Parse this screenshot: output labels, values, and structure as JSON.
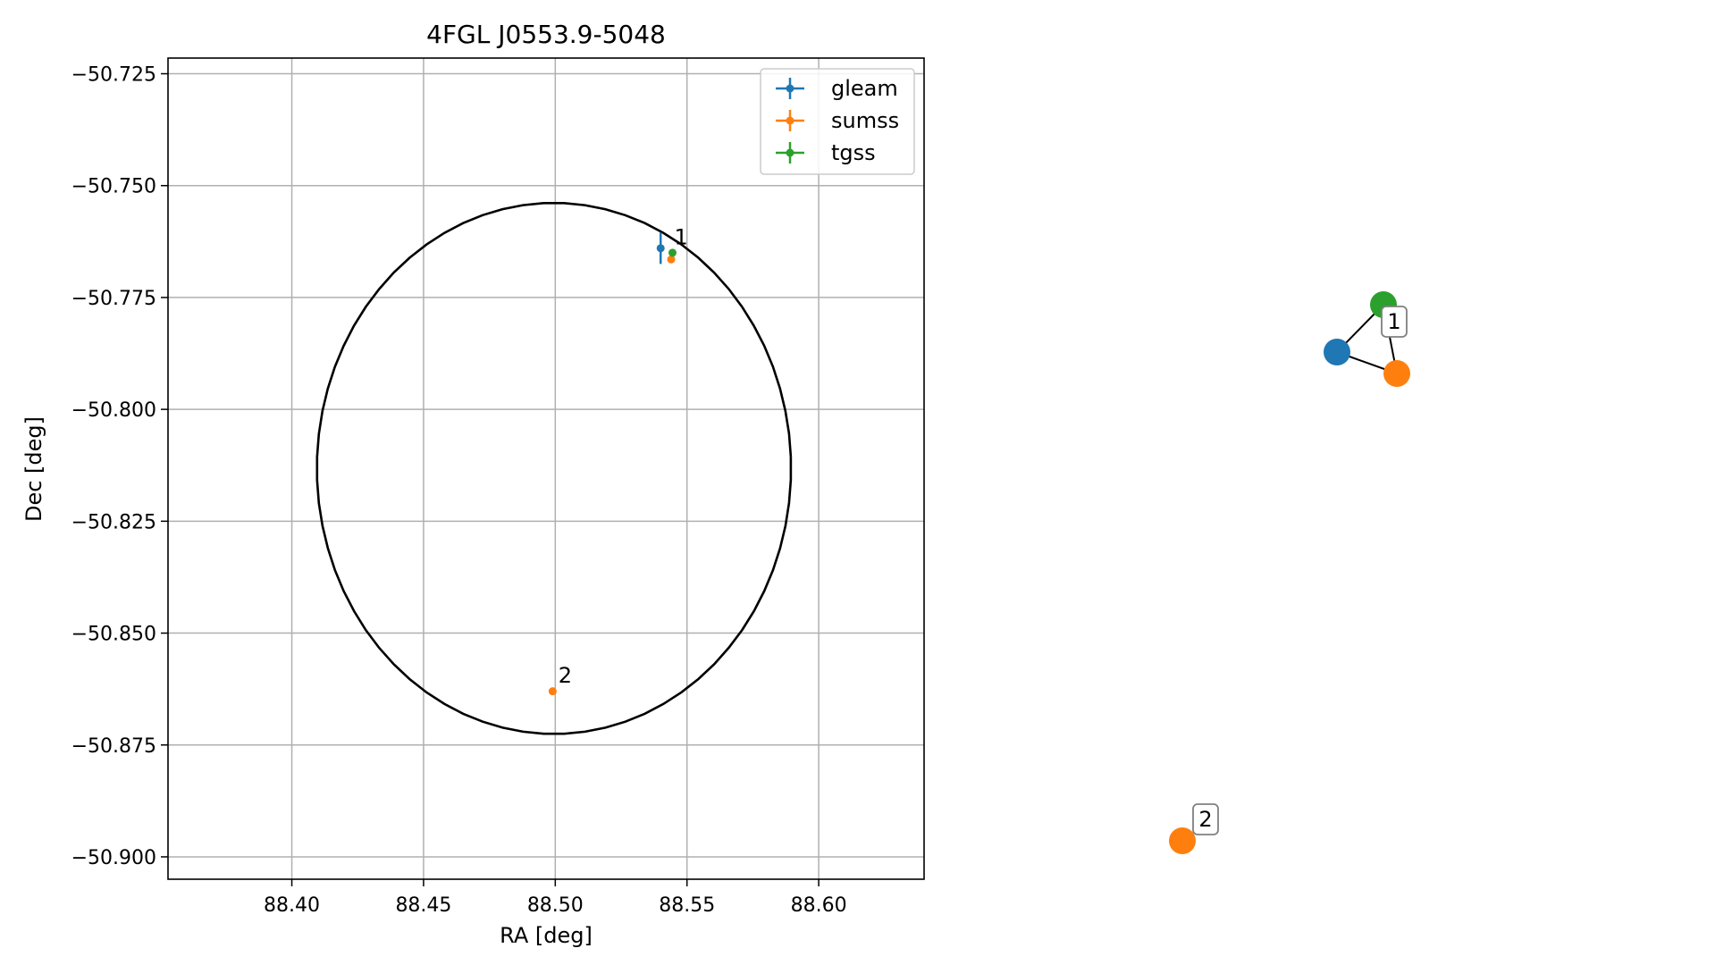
{
  "colors": {
    "gleam": "#1f77b4",
    "sumss": "#ff7f0e",
    "tgss": "#2ca02c",
    "grid": "#b0b0b0",
    "ellipse": "#000000"
  },
  "chart_data": [
    {
      "type": "scatter",
      "title": "4FGL J0553.9-5048",
      "xlabel": "RA [deg]",
      "ylabel": "Dec [deg]",
      "xlim": [
        88.353,
        88.64
      ],
      "ylim": [
        -50.905,
        -50.7215
      ],
      "xticks": [
        88.4,
        88.45,
        88.5,
        88.55,
        88.6
      ],
      "xtick_labels": [
        "88.40",
        "88.45",
        "88.50",
        "88.55",
        "88.60"
      ],
      "yticks": [
        -50.725,
        -50.75,
        -50.775,
        -50.8,
        -50.825,
        -50.85,
        -50.875,
        -50.9
      ],
      "ytick_labels": [
        "−50.725",
        "−50.750",
        "−50.775",
        "−50.800",
        "−50.825",
        "−50.850",
        "−50.875",
        "−50.900"
      ],
      "grid": true,
      "legend_position": "top-right",
      "series": [
        {
          "name": "gleam",
          "color_key": "gleam",
          "points": [
            {
              "x": 88.54,
              "y": -50.764,
              "xerr": 0.0,
              "yerr": 0.0035
            }
          ]
        },
        {
          "name": "sumss",
          "color_key": "sumss",
          "points": [
            {
              "x": 88.544,
              "y": -50.7665,
              "xerr": 0.0,
              "yerr": 0.0
            },
            {
              "x": 88.499,
              "y": -50.863,
              "xerr": 0.0,
              "yerr": 0.0
            }
          ]
        },
        {
          "name": "tgss",
          "color_key": "tgss",
          "points": [
            {
              "x": 88.5445,
              "y": -50.765,
              "xerr": 0.0,
              "yerr": 0.0
            }
          ]
        }
      ],
      "annotations": [
        {
          "text": "1",
          "x": 88.5445,
          "y": -50.7635
        },
        {
          "text": "2",
          "x": 88.5005,
          "y": -50.8615
        }
      ],
      "ellipse": {
        "center_ra": 88.4995,
        "center_dec": -50.8132,
        "semi_ra": 0.0913,
        "semi_dec": 0.0602,
        "tilt_deg": 10
      }
    },
    {
      "type": "network",
      "nodes": [
        {
          "id": "gleam",
          "color_key": "gleam",
          "gx": 0.1867,
          "gy": 0.8822
        },
        {
          "id": "sumss",
          "color_key": "sumss",
          "gx": 0.2567,
          "gy": 0.8711
        },
        {
          "id": "tgss",
          "color_key": "tgss",
          "gx": 0.2439,
          "gy": 0.905
        },
        {
          "id": "sumss-2",
          "color_key": "sumss",
          "gx": 0.01,
          "gy": 0.65
        }
      ],
      "edges": [
        [
          "gleam",
          "tgss"
        ],
        [
          "gleam",
          "sumss"
        ],
        [
          "tgss",
          "sumss"
        ]
      ],
      "labels": [
        {
          "text": "1",
          "gx": 0.316,
          "gy": 0.885
        },
        {
          "text": "2",
          "gx": 0.07,
          "gy": 0.652
        }
      ]
    }
  ]
}
